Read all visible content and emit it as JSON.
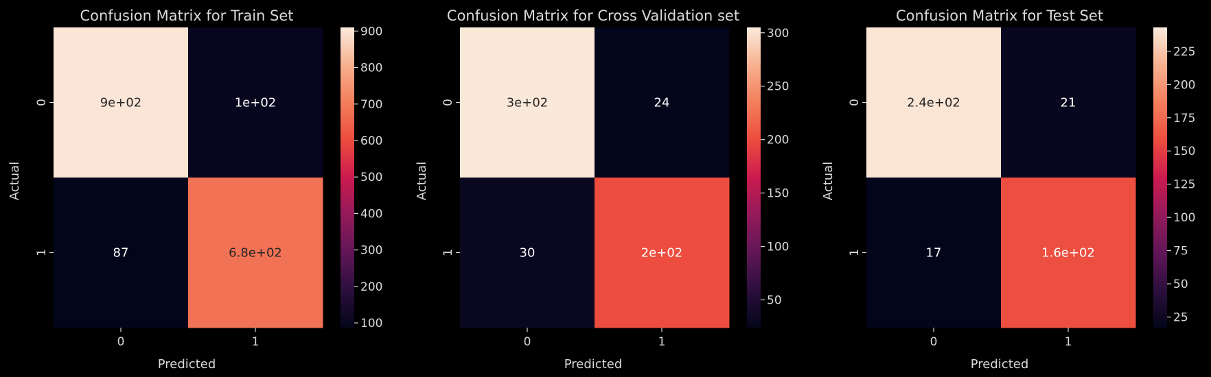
{
  "chart_data": [
    {
      "type": "heatmap",
      "title": "Confusion Matrix for Train Set",
      "xlabel": "Predicted",
      "ylabel": "Actual",
      "x_categories": [
        "0",
        "1"
      ],
      "y_categories": [
        "0",
        "1"
      ],
      "matrix": [
        [
          900,
          100
        ],
        [
          87,
          680
        ]
      ],
      "annotations": [
        [
          "9e+02",
          "1e+02"
        ],
        [
          "87",
          "6.8e+02"
        ]
      ],
      "colorbar": {
        "min": 87,
        "max": 910,
        "ticks": [
          100,
          200,
          300,
          400,
          500,
          600,
          700,
          800,
          900
        ]
      }
    },
    {
      "type": "heatmap",
      "title": "Confusion Matrix for Cross Validation set",
      "xlabel": "Predicted",
      "ylabel": "Actual",
      "x_categories": [
        "0",
        "1"
      ],
      "y_categories": [
        "0",
        "1"
      ],
      "matrix": [
        [
          303,
          24
        ],
        [
          30,
          200
        ]
      ],
      "annotations": [
        [
          "3e+02",
          "24"
        ],
        [
          "30",
          "2e+02"
        ]
      ],
      "colorbar": {
        "min": 24,
        "max": 305,
        "ticks": [
          50,
          100,
          150,
          200,
          250,
          300
        ]
      }
    },
    {
      "type": "heatmap",
      "title": "Confusion Matrix for Test Set",
      "xlabel": "Predicted",
      "ylabel": "Actual",
      "x_categories": [
        "0",
        "1"
      ],
      "y_categories": [
        "0",
        "1"
      ],
      "matrix": [
        [
          240,
          21
        ],
        [
          17,
          160
        ]
      ],
      "annotations": [
        [
          "2.4e+02",
          "21"
        ],
        [
          "17",
          "1.6e+02"
        ]
      ],
      "colorbar": {
        "min": 17,
        "max": 243,
        "ticks": [
          25,
          50,
          75,
          100,
          125,
          150,
          175,
          200,
          225
        ]
      }
    }
  ],
  "colors": {
    "background": "#000000",
    "foreground": "#d9d9d9",
    "colormap": [
      "#03051a",
      "#2b0f3d",
      "#611657",
      "#931a5b",
      "#cb1b4f",
      "#ec4c3e",
      "#f47e5c",
      "#f7b190",
      "#faebdd"
    ]
  }
}
